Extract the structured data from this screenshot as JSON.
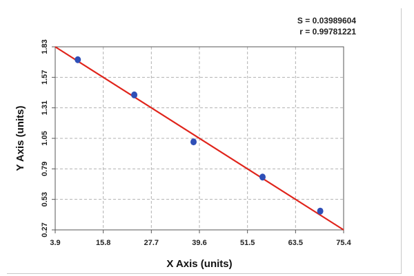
{
  "chart_data": {
    "type": "scatter",
    "title": "",
    "xlabel": "X Axis (units)",
    "ylabel": "Y Axis (units)",
    "xlim": [
      3.9,
      75.4
    ],
    "ylim": [
      0.27,
      1.83
    ],
    "x_ticks": [
      "3.9",
      "15.8",
      "27.7",
      "39.6",
      "51.5",
      "63.5",
      "75.4"
    ],
    "y_ticks": [
      "0.27",
      "0.53",
      "0.79",
      "1.05",
      "1.31",
      "1.57",
      "1.83"
    ],
    "grid": true,
    "annotations": [
      "S = 0.03989604",
      "r = 0.99781221"
    ],
    "points": [
      {
        "x": 9.5,
        "y": 1.72
      },
      {
        "x": 23.5,
        "y": 1.42
      },
      {
        "x": 38.2,
        "y": 1.02
      },
      {
        "x": 55.3,
        "y": 0.72
      },
      {
        "x": 69.6,
        "y": 0.43
      }
    ],
    "fit_line": [
      {
        "x": 3.9,
        "y": 1.83
      },
      {
        "x": 75.4,
        "y": 0.27
      }
    ],
    "colors": {
      "points": "#2f4fb7",
      "fit_line": "#e0241b",
      "grid": "#b0b0b0",
      "axis": "#555555"
    }
  }
}
